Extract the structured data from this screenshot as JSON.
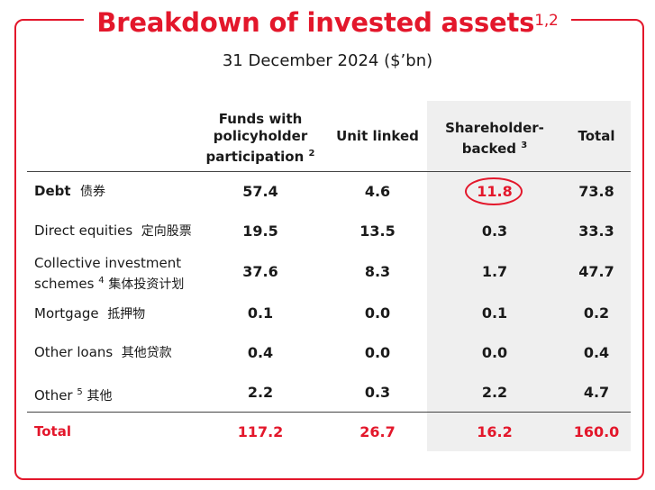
{
  "title": "Breakdown of invested assets",
  "title_sup": "1,2",
  "subtitle": "31 December 2024 ($’bn)",
  "columns": [
    {
      "lines": [
        "Funds with",
        "policyholder",
        "participation"
      ],
      "sup": "2"
    },
    {
      "lines": [
        "Unit linked"
      ],
      "sup": ""
    },
    {
      "lines": [
        "Shareholder-",
        "backed"
      ],
      "sup": "3"
    },
    {
      "lines": [
        "Total"
      ],
      "sup": ""
    }
  ],
  "rows": [
    {
      "label": "Debt",
      "label_zh": "债券",
      "sup": "",
      "values": [
        "57.4",
        "4.6",
        "11.8",
        "73.8"
      ]
    },
    {
      "label": "Direct equities",
      "label_zh": "定向股票",
      "sup": "",
      "values": [
        "19.5",
        "13.5",
        "0.3",
        "33.3"
      ]
    },
    {
      "label": "Collective investment",
      "label2": "schemes",
      "label_zh": "集体投资计划",
      "sup": "4",
      "values": [
        "37.6",
        "8.3",
        "1.7",
        "47.7"
      ]
    },
    {
      "label": "Mortgage",
      "label_zh": "抵押物",
      "sup": "",
      "values": [
        "0.1",
        "0.0",
        "0.1",
        "0.2"
      ]
    },
    {
      "label": "Other loans",
      "label_zh": "其他贷款",
      "sup": "",
      "values": [
        "0.4",
        "0.0",
        "0.0",
        "0.4"
      ]
    },
    {
      "label": "Other",
      "label_zh": "其他",
      "sup": "5",
      "values": [
        "2.2",
        "0.3",
        "2.2",
        "4.7"
      ]
    }
  ],
  "total": {
    "label": "Total",
    "values": [
      "117.2",
      "26.7",
      "16.2",
      "160.0"
    ]
  },
  "colors": {
    "accent": "#e3172b",
    "shade": "#efefef"
  }
}
